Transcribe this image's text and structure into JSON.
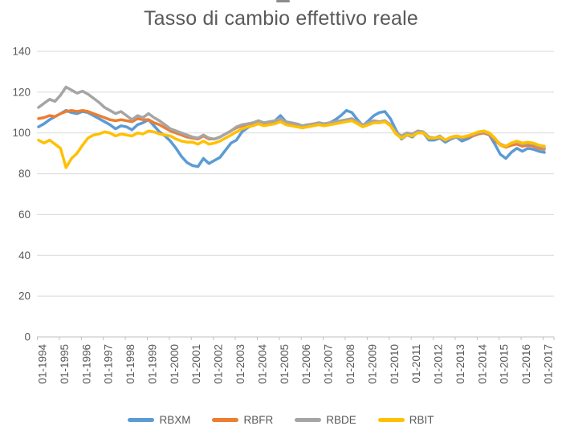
{
  "chart_data": {
    "type": "line",
    "title": "Tasso di cambio effettivo reale",
    "xlabel": "",
    "ylabel": "",
    "ylim": [
      0,
      140
    ],
    "y_ticks": [
      0,
      20,
      40,
      60,
      80,
      100,
      120,
      140
    ],
    "grid": true,
    "legend_position": "bottom",
    "x_frequency": "quarterly",
    "x_range": [
      "01-1994",
      "01-2017"
    ],
    "x_tick_labels": [
      "01-1994",
      "01-1995",
      "01-1996",
      "01-1997",
      "01-1998",
      "01-1999",
      "01-2000",
      "01-2001",
      "01-2002",
      "01-2003",
      "01-2004",
      "01-2005",
      "01-2006",
      "01-2007",
      "01-2008",
      "01-2009",
      "01-2010",
      "01-2011",
      "01-2012",
      "01-2013",
      "01-2014",
      "01-2015",
      "01-2016",
      "01-2017"
    ],
    "series": [
      {
        "name": "RBXM",
        "color": "#5B9BD5",
        "values": [
          103,
          104.5,
          106.5,
          108,
          109.5,
          111,
          110,
          109.5,
          110.5,
          110,
          108.5,
          107,
          105.5,
          104,
          102,
          103.5,
          103,
          101.5,
          104,
          105,
          106.5,
          103.5,
          100.5,
          98.5,
          96,
          92.5,
          88.5,
          85.5,
          84,
          83.5,
          87.5,
          85,
          86.5,
          88,
          91.5,
          95,
          96.5,
          100.5,
          102.5,
          104,
          106,
          104,
          104.5,
          106,
          108.5,
          105.5,
          104,
          103.5,
          102.5,
          103.5,
          104,
          105,
          104.5,
          105,
          106.5,
          108.5,
          111,
          110,
          106.5,
          103.5,
          106,
          108.5,
          110,
          110.5,
          107,
          101.5,
          97,
          99,
          98,
          100.5,
          100,
          96.5,
          96.5,
          97.5,
          95.5,
          97,
          98,
          96,
          97,
          98.5,
          99.5,
          100,
          99,
          94.5,
          89.5,
          87.5,
          90.5,
          92.5,
          91,
          92.5,
          92,
          91,
          90.5
        ]
      },
      {
        "name": "RBFR",
        "color": "#ED7D31",
        "values": [
          107,
          107.5,
          108.5,
          108,
          109.5,
          110.5,
          111,
          110.5,
          111,
          110.5,
          109.5,
          108.5,
          107.5,
          106.5,
          106,
          106.5,
          106,
          105.5,
          107,
          106.5,
          106.5,
          105,
          104,
          102.5,
          101,
          100,
          99,
          98,
          97.5,
          97,
          98.5,
          97,
          97,
          98,
          99.5,
          101,
          102.5,
          103.5,
          104,
          104.5,
          105.5,
          104.5,
          105,
          105.5,
          106.5,
          105,
          104.5,
          104,
          103.5,
          104,
          104,
          104.5,
          104,
          104.5,
          105,
          105.5,
          106,
          106.5,
          105,
          103.5,
          104.5,
          105.5,
          105.5,
          106,
          104,
          100,
          98,
          99.5,
          99,
          100.5,
          100,
          97.5,
          97.5,
          98,
          96.5,
          97.5,
          98,
          97.5,
          98,
          98.5,
          99.5,
          100,
          99,
          96.5,
          94,
          93,
          94,
          94.5,
          93.5,
          94,
          93.5,
          92.5,
          92
        ]
      },
      {
        "name": "RBDE",
        "color": "#A5A5A5",
        "values": [
          112.5,
          114.5,
          116.5,
          115.5,
          118.5,
          122.5,
          121,
          119.5,
          120.5,
          119,
          117,
          115,
          112.5,
          111,
          109.5,
          110.5,
          108.5,
          106.5,
          108.5,
          107.5,
          109.5,
          107.5,
          106,
          104,
          102,
          101,
          100,
          99,
          98,
          97.5,
          99,
          97.5,
          97,
          98,
          99.5,
          101,
          103,
          104,
          104.5,
          105,
          106,
          105,
          105.5,
          106,
          107,
          105.5,
          105,
          104.5,
          103.5,
          104,
          104.5,
          105,
          104.5,
          105,
          105.5,
          106,
          106.5,
          107,
          105.5,
          104,
          105,
          106,
          105.5,
          106,
          104,
          100.5,
          98.5,
          100,
          99.5,
          101,
          100.5,
          98,
          97.5,
          98.5,
          96.5,
          97.5,
          98,
          97.5,
          98.5,
          99,
          100,
          100.5,
          99.5,
          97,
          94.5,
          93.5,
          95,
          95.5,
          94.5,
          95,
          94.5,
          93.5,
          92.5
        ]
      },
      {
        "name": "RBIT",
        "color": "#FFC000",
        "values": [
          96.5,
          95,
          96.5,
          94.5,
          92.5,
          83,
          87.5,
          90,
          94,
          97.5,
          99,
          99.5,
          100.5,
          100,
          98.5,
          99.5,
          99,
          98.5,
          100,
          99.5,
          101,
          100.5,
          99.5,
          99,
          98.5,
          97,
          96,
          95.5,
          95.5,
          94.5,
          96,
          94.5,
          95,
          96,
          97.5,
          99,
          100.5,
          102,
          103,
          103.5,
          104.5,
          103.5,
          104,
          104.5,
          105.5,
          104,
          103.5,
          103,
          102.5,
          103,
          103.5,
          104,
          103.5,
          104,
          104.5,
          105,
          105.5,
          106,
          104.5,
          103,
          104,
          105,
          105,
          105.5,
          103.5,
          99.5,
          97.5,
          99,
          98.5,
          100,
          100,
          97.5,
          97.5,
          98,
          96.5,
          98,
          98.5,
          98,
          98.5,
          99.5,
          100.5,
          101,
          100,
          97.5,
          94,
          93.5,
          95,
          96,
          95,
          95.5,
          95,
          94,
          93.5
        ]
      }
    ],
    "styling": {
      "grid_color": "#D9D9D9",
      "axis_color": "#BFBFBF",
      "tick_label_color": "#595959",
      "title_color": "#595959",
      "line_width": 3.5
    }
  }
}
